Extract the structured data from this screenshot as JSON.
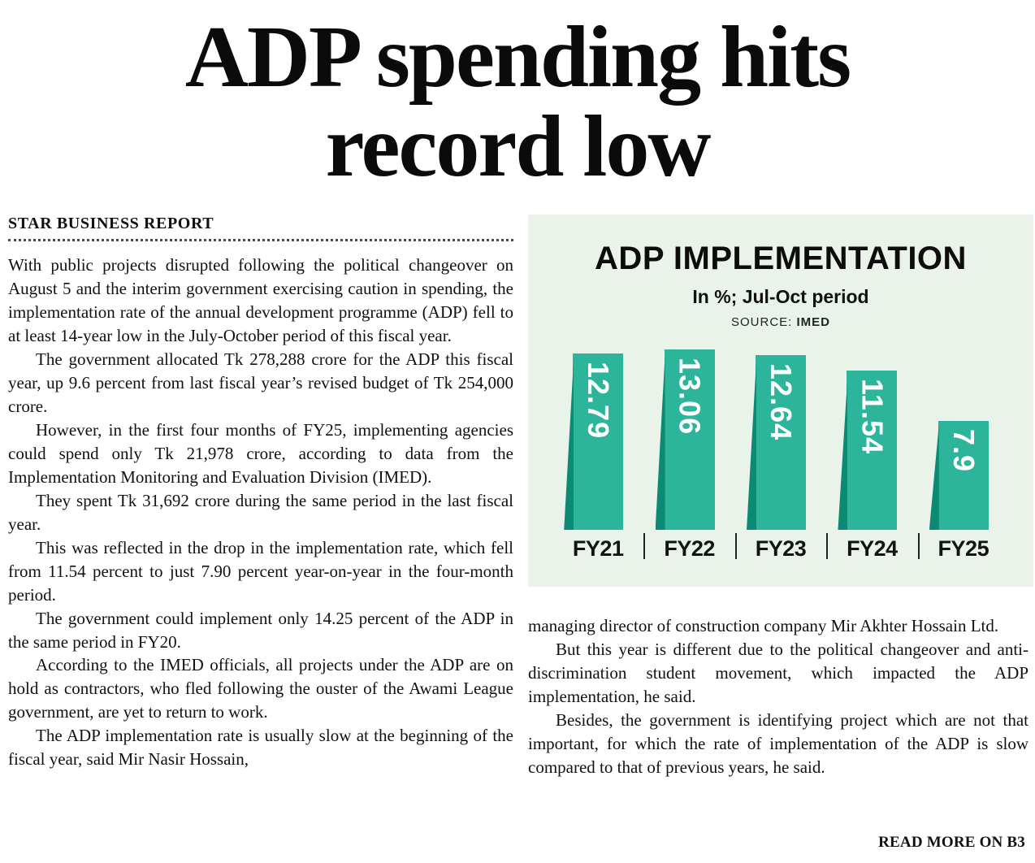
{
  "headline": {
    "lines": [
      "ADP spending hits",
      "record low"
    ]
  },
  "byline": "STAR BUSINESS REPORT",
  "article": {
    "left_paragraphs": [
      "With public projects disrupted following the political changeover on August 5 and the interim government exercising caution in spending, the implementation rate of the annual development programme (ADP) fell to at least 14-year low in the July-October period of this fiscal year.",
      "The government allocated Tk 278,288 crore for the ADP this fiscal year, up 9.6 percent from last fiscal year’s revised budget of Tk 254,000 crore.",
      "However, in the first four months of FY25, implementing agencies could spend only Tk 21,978 crore, according to data from the Implementation Monitoring and Evaluation Division (IMED).",
      "They spent Tk 31,692 crore during the same period in the last fiscal year.",
      "This was reflected in the drop in the implementation rate, which fell from 11.54 percent to just 7.90 percent year-on-year in the four-month period.",
      "The government could implement only 14.25 percent of the ADP in the same period in FY20.",
      "According to the IMED officials, all projects under the ADP are on hold as contractors, who fled following the ouster of the Awami League government, are yet to return to work.",
      "The ADP implementation rate is usually slow at the beginning of the fiscal year, said Mir Nasir Hossain,"
    ],
    "right_paragraphs": [
      "managing director of construction company Mir Akhter Hossain Ltd.",
      "But this year is different due to the political changeover and anti-discrimination student movement, which impacted the ADP implementation, he said.",
      "Besides, the government is identifying project which are not that important, for which the rate of implementation of the ADP is slow compared to that of previous years, he said."
    ],
    "read_more": "READ MORE ON B3"
  },
  "chart": {
    "source_label": "SOURCE:",
    "colors": {
      "panel_bg": "#e9f3ea",
      "bar": "#2db59b",
      "bar_edge": "#0d8a76",
      "text": "#111111"
    }
  },
  "chart_data": {
    "type": "bar",
    "title": "ADP IMPLEMENTATION",
    "subtitle": "In %; Jul-Oct period",
    "source": "IMED",
    "categories": [
      "FY21",
      "FY22",
      "FY23",
      "FY24",
      "FY25"
    ],
    "values": [
      12.79,
      13.06,
      12.64,
      11.54,
      7.9
    ],
    "value_labels": [
      "12.79",
      "13.06",
      "12.64",
      "11.54",
      "7.9"
    ],
    "unit": "%",
    "ylim": [
      0,
      14
    ],
    "xlabel": "",
    "ylabel": "",
    "grid": false,
    "legend": false
  }
}
